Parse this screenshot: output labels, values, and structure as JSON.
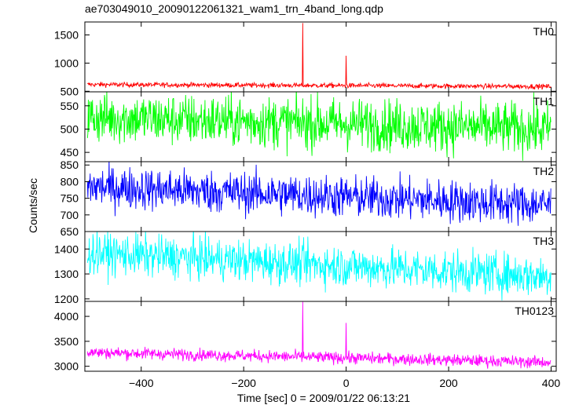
{
  "title": "ae703049010_20090122061321_wam1_trn_4band_long.qdp",
  "chart_data": {
    "type": "line",
    "title": "ae703049010_20090122061321_wam1_trn_4band_long.qdp",
    "xlabel": "Time [sec] 0 = 2009/01/22 06:13:21",
    "ylabel": "Counts/sec",
    "xlim": [
      -510,
      410
    ],
    "xticks": [
      -400,
      -200,
      0,
      200,
      400
    ],
    "xtick_labels": [
      "−400",
      "−200",
      "0",
      "200",
      "400"
    ],
    "series": [
      {
        "name": "TH0",
        "color": "#ff0000",
        "ylim": [
          490,
          1730
        ],
        "yticks": [
          500,
          1000,
          1500
        ],
        "ytick_labels": [
          "500",
          "1000",
          "1500"
        ],
        "baseline_start": 620,
        "baseline_end": 585,
        "noise": 22,
        "spikes": [
          {
            "x": -85,
            "y": 1710
          },
          {
            "x": 0,
            "y": 1130
          }
        ]
      },
      {
        "name": "TH1",
        "color": "#00ff00",
        "ylim": [
          430,
          580
        ],
        "yticks": [
          450,
          500,
          550
        ],
        "ytick_labels": [
          "450",
          "500",
          "550"
        ],
        "baseline_start": 525,
        "baseline_end": 500,
        "noise": 28,
        "spikes": []
      },
      {
        "name": "TH2",
        "color": "#0000ff",
        "ylim": [
          650,
          860
        ],
        "yticks": [
          650,
          700,
          750,
          800,
          850
        ],
        "ytick_labels": [
          "650",
          "700",
          "750",
          "800",
          "850"
        ],
        "baseline_start": 785,
        "baseline_end": 730,
        "noise": 32,
        "spikes": []
      },
      {
        "name": "TH3",
        "color": "#00ffff",
        "ylim": [
          1190,
          1470
        ],
        "yticks": [
          1200,
          1300,
          1400
        ],
        "ytick_labels": [
          "1200",
          "1300",
          "1400"
        ],
        "baseline_start": 1385,
        "baseline_end": 1290,
        "noise": 42,
        "spikes": []
      },
      {
        "name": "TH0123",
        "color": "#ff00ff",
        "ylim": [
          2900,
          4300
        ],
        "yticks": [
          3000,
          3500,
          4000
        ],
        "ytick_labels": [
          "3000",
          "3500",
          "4000"
        ],
        "baseline_start": 3280,
        "baseline_end": 3080,
        "noise": 60,
        "spikes": [
          {
            "x": -85,
            "y": 4290
          },
          {
            "x": 0,
            "y": 3870
          }
        ]
      }
    ]
  }
}
